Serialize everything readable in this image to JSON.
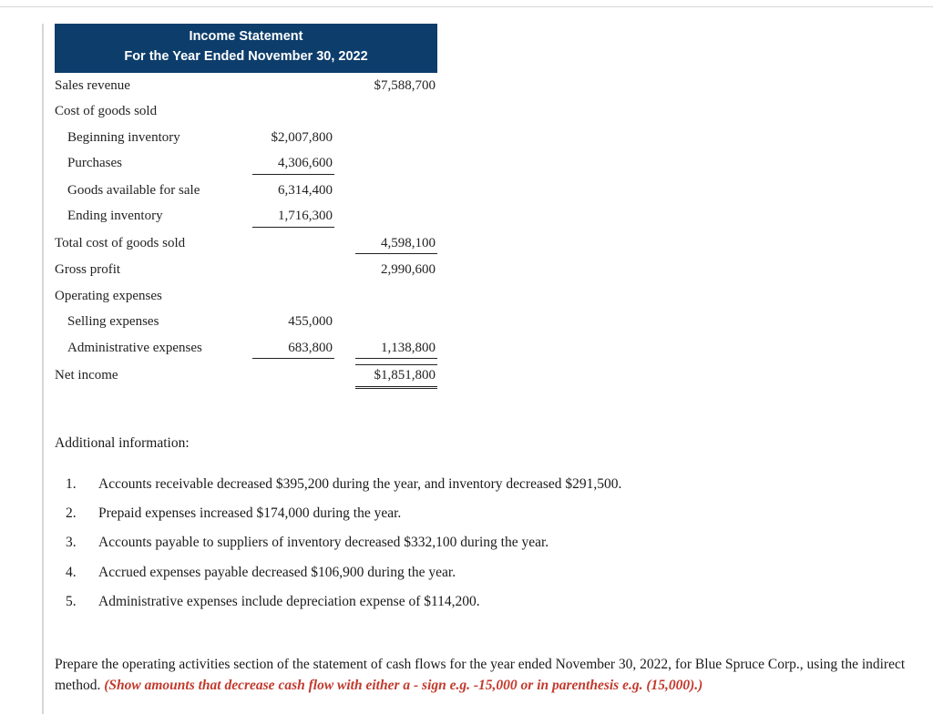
{
  "colors": {
    "header_bg": "#0d3d6b",
    "header_text": "#ffffff",
    "body_text": "#1a1a1a",
    "rule": "#d6d6d6",
    "instr_red": "#c23a2d"
  },
  "statement": {
    "title_line1": "Income Statement",
    "title_line2": "For the Year Ended November 30, 2022",
    "rows": {
      "sales_revenue": {
        "label": "Sales revenue",
        "col_b": "$7,588,700"
      },
      "cogs_header": {
        "label": "Cost of goods sold"
      },
      "beg_inv": {
        "label": "Beginning inventory",
        "col_a": "$2,007,800"
      },
      "purchases": {
        "label": "Purchases",
        "col_a": "4,306,600"
      },
      "gafs": {
        "label": "Goods available for sale",
        "col_a": "6,314,400"
      },
      "end_inv": {
        "label": "Ending inventory",
        "col_a": "1,716,300"
      },
      "total_cogs": {
        "label": "Total cost of goods sold",
        "col_b": "4,598,100"
      },
      "gross_profit": {
        "label": "Gross profit",
        "col_b": "2,990,600"
      },
      "opex_header": {
        "label": "Operating expenses"
      },
      "selling": {
        "label": "Selling expenses",
        "col_a": "455,000"
      },
      "admin": {
        "label": "Administrative expenses",
        "col_a": "683,800",
        "col_b": "1,138,800"
      },
      "net_income": {
        "label": "Net income",
        "col_b": "$1,851,800"
      }
    }
  },
  "additional": {
    "heading": "Additional information:",
    "items": [
      {
        "n": "1.",
        "text": "Accounts receivable decreased $395,200 during the year, and inventory decreased $291,500."
      },
      {
        "n": "2.",
        "text": "Prepaid expenses increased $174,000 during the year."
      },
      {
        "n": "3.",
        "text": "Accounts payable to suppliers of inventory decreased $332,100 during the year."
      },
      {
        "n": "4.",
        "text": "Accrued expenses payable decreased $106,900 during the year."
      },
      {
        "n": "5.",
        "text": "Administrative expenses include depreciation expense of $114,200."
      }
    ]
  },
  "instruction": {
    "plain": "Prepare the operating activities section of the statement of cash flows for the year ended November 30, 2022, for Blue Spruce Corp., using the indirect method. ",
    "red": "(Show amounts that decrease cash flow with either a - sign e.g. -15,000 or in parenthesis e.g. (15,000).)"
  }
}
